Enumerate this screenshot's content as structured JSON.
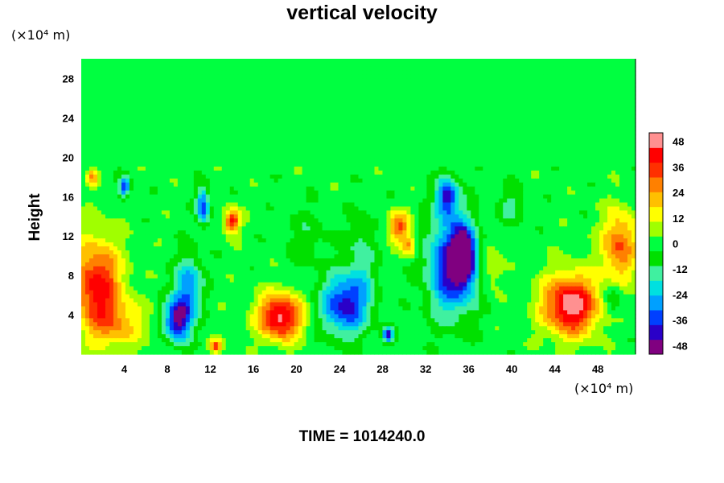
{
  "chart_data": {
    "type": "heatmap",
    "title": "vertical velocity",
    "ylabel": "Height",
    "x_unit": "(×10⁴ m)",
    "y_unit": "(×10⁴ m)",
    "footer": "TIME = 1014240.0",
    "xlim": [
      0,
      51.5
    ],
    "ylim": [
      0,
      30
    ],
    "x_ticks": [
      "4",
      "8",
      "12",
      "16",
      "20",
      "24",
      "28",
      "32",
      "36",
      "40",
      "44",
      "48"
    ],
    "y_ticks": [
      "4",
      "8",
      "12",
      "16",
      "20",
      "24",
      "28"
    ],
    "colorbar": {
      "range": [
        -52,
        52
      ],
      "ticks": [
        "48",
        "36",
        "24",
        "12",
        "0",
        "-12",
        "-24",
        "-36",
        "-48"
      ],
      "colors": [
        "#800080",
        "#2a00c8",
        "#0040ff",
        "#00a0ff",
        "#00e0e0",
        "#40f0a0",
        "#00e000",
        "#00ff40",
        "#a0ff00",
        "#ffff00",
        "#ffc000",
        "#ff8000",
        "#ff3000",
        "#ff0000",
        "#ff9090"
      ]
    },
    "features": [
      {
        "x": 1.5,
        "y": 7,
        "sx": 2.2,
        "sy": 4.5,
        "v": 42
      },
      {
        "x": 3.5,
        "y": 3,
        "sx": 2.5,
        "sy": 2.5,
        "v": 18
      },
      {
        "x": 9,
        "y": 3.5,
        "sx": 1.2,
        "sy": 2.2,
        "v": -50
      },
      {
        "x": 10,
        "y": 7,
        "sx": 1.2,
        "sy": 3,
        "v": -30
      },
      {
        "x": 11.3,
        "y": 15,
        "sx": 0.6,
        "sy": 1.8,
        "v": -38
      },
      {
        "x": 14,
        "y": 13.5,
        "sx": 0.7,
        "sy": 1.2,
        "v": 42
      },
      {
        "x": 12.5,
        "y": 0.8,
        "sx": 0.6,
        "sy": 0.6,
        "v": 36
      },
      {
        "x": 18.5,
        "y": 3.8,
        "sx": 2.0,
        "sy": 2.3,
        "v": 50
      },
      {
        "x": 4,
        "y": 17,
        "sx": 0.5,
        "sy": 1.0,
        "v": -40
      },
      {
        "x": 1.0,
        "y": 18,
        "sx": 0.5,
        "sy": 0.8,
        "v": 25
      },
      {
        "x": 24.5,
        "y": 5,
        "sx": 2.2,
        "sy": 3.0,
        "v": -42
      },
      {
        "x": 26,
        "y": 10,
        "sx": 1.2,
        "sy": 4.0,
        "v": -15
      },
      {
        "x": 29.5,
        "y": 13,
        "sx": 1.0,
        "sy": 1.5,
        "v": 32
      },
      {
        "x": 30.5,
        "y": 11,
        "sx": 0.7,
        "sy": 1.0,
        "v": 25
      },
      {
        "x": 34.5,
        "y": 9,
        "sx": 2.3,
        "sy": 5.0,
        "v": -44
      },
      {
        "x": 35.5,
        "y": 10,
        "sx": 1.0,
        "sy": 2.5,
        "v": -52
      },
      {
        "x": 34,
        "y": 16,
        "sx": 1.0,
        "sy": 2.0,
        "v": -38
      },
      {
        "x": 38,
        "y": 9,
        "sx": 1.0,
        "sy": 2.5,
        "v": 15
      },
      {
        "x": 28.5,
        "y": 2,
        "sx": 0.5,
        "sy": 0.8,
        "v": -40
      },
      {
        "x": 45.5,
        "y": 5,
        "sx": 2.5,
        "sy": 3.0,
        "v": 52
      },
      {
        "x": 50,
        "y": 11,
        "sx": 1.6,
        "sy": 3.5,
        "v": 32
      },
      {
        "x": 49.5,
        "y": 5.5,
        "sx": 0.8,
        "sy": 1.5,
        "v": -15
      },
      {
        "x": 40,
        "y": 15,
        "sx": 1.2,
        "sy": 2.0,
        "v": -12
      },
      {
        "x": 21,
        "y": 12,
        "sx": 2.0,
        "sy": 3.0,
        "v": -8
      }
    ]
  }
}
